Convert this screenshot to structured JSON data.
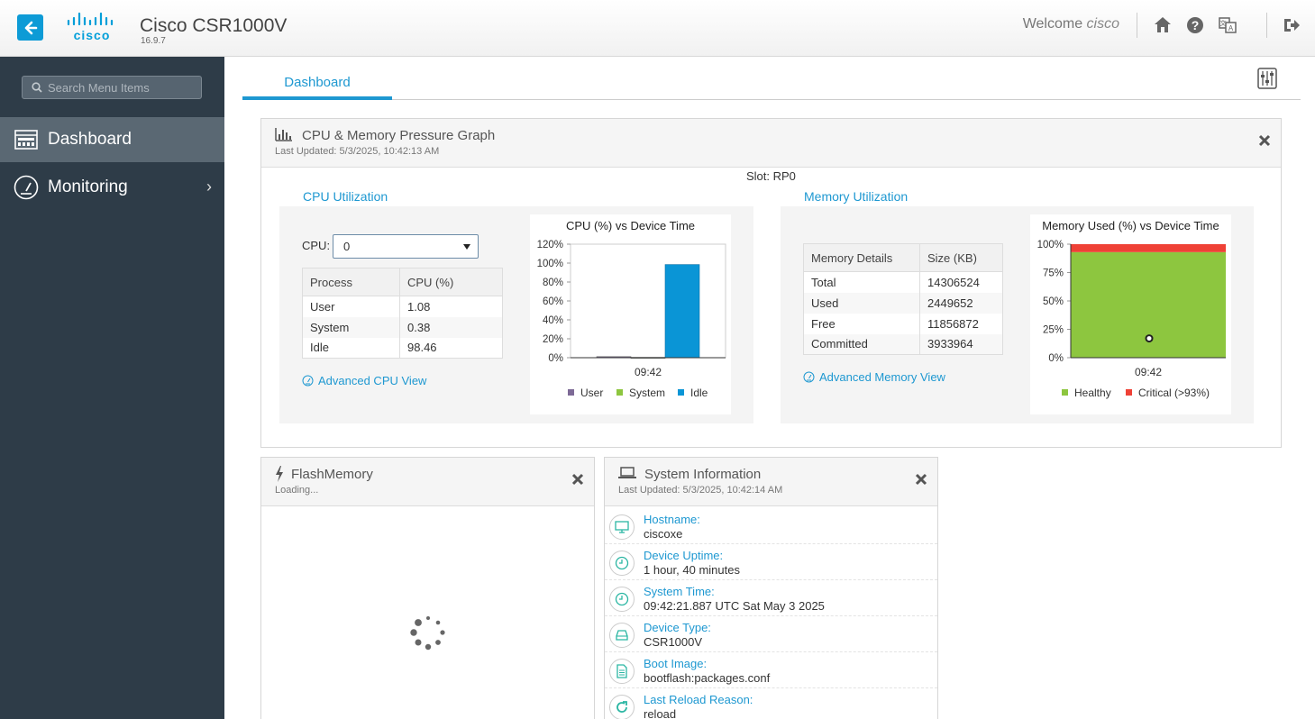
{
  "header": {
    "app_title": "Cisco CSR1000V",
    "app_version": "16.9.7",
    "welcome_label": "Welcome",
    "username": "cisco",
    "icons": [
      "back-arrow-icon",
      "cisco-logo",
      "home-icon",
      "help-icon",
      "language-icon",
      "logout-icon"
    ]
  },
  "sidebar": {
    "search_placeholder": "Search Menu Items",
    "items": [
      {
        "label": "Dashboard",
        "active": true
      },
      {
        "label": "Monitoring",
        "active": false
      }
    ]
  },
  "tabs": [
    {
      "label": "Dashboard",
      "active": true
    }
  ],
  "cpu_mem_panel": {
    "title": "CPU & Memory Pressure Graph",
    "last_updated": "Last Updated: 5/3/2025, 10:42:13 AM",
    "slot": "Slot: RP0",
    "cpu": {
      "title": "CPU Utilization",
      "cpu_label": "CPU:",
      "cpu_selected": "0",
      "headers": [
        "Process",
        "CPU (%)"
      ],
      "rows": [
        [
          "User",
          "1.08"
        ],
        [
          "System",
          "0.38"
        ],
        [
          "Idle",
          "98.46"
        ]
      ],
      "advanced_link": "Advanced CPU View"
    },
    "memory": {
      "title": "Memory Utilization",
      "headers": [
        "Memory Details",
        "Size (KB)"
      ],
      "rows": [
        [
          "Total",
          "14306524"
        ],
        [
          "Used",
          "2449652"
        ],
        [
          "Free",
          "11856872"
        ],
        [
          "Committed",
          "3933964"
        ]
      ],
      "advanced_link": "Advanced Memory View"
    }
  },
  "chart_data": [
    {
      "type": "bar",
      "title": "CPU (%) vs Device Time",
      "categories": [
        "09:42"
      ],
      "series": [
        {
          "name": "User",
          "values": [
            1.08
          ],
          "color": "#7d6a96"
        },
        {
          "name": "System",
          "values": [
            0.38
          ],
          "color": "#8dc63f"
        },
        {
          "name": "Idle",
          "values": [
            98.46
          ],
          "color": "#0a95d6"
        }
      ],
      "yticks": [
        "120%",
        "100%",
        "80%",
        "60%",
        "40%",
        "20%",
        "0%"
      ],
      "ylim": [
        0,
        120
      ]
    },
    {
      "type": "area",
      "title": "Memory Used (%) vs Device Time",
      "categories": [
        "09:42"
      ],
      "series": [
        {
          "name": "Healthy",
          "values": [
            93
          ],
          "color": "#8dc63f"
        },
        {
          "name": "Critical (>93%)",
          "values": [
            7
          ],
          "color": "#ef4136"
        }
      ],
      "point": {
        "x": "09:42",
        "y": 17
      },
      "yticks": [
        "100%",
        "75%",
        "50%",
        "25%",
        "0%"
      ],
      "ylim": [
        0,
        100
      ]
    }
  ],
  "flash_panel": {
    "title": "FlashMemory",
    "status": "Loading..."
  },
  "sysinfo_panel": {
    "title": "System Information",
    "last_updated": "Last Updated: 5/3/2025, 10:42:14 AM",
    "rows": [
      {
        "label": "Hostname:",
        "value": "ciscoxe",
        "icon": "monitor-icon"
      },
      {
        "label": "Device Uptime:",
        "value": "1 hour, 40 minutes",
        "icon": "clock-icon"
      },
      {
        "label": "System Time:",
        "value": "09:42:21.887 UTC Sat May 3 2025",
        "icon": "clock-icon"
      },
      {
        "label": "Device Type:",
        "value": "CSR1000V",
        "icon": "router-icon"
      },
      {
        "label": "Boot Image:",
        "value": "bootflash:packages.conf",
        "icon": "document-icon"
      },
      {
        "label": "Last Reload Reason:",
        "value": "reload",
        "icon": "refresh-icon"
      }
    ]
  }
}
